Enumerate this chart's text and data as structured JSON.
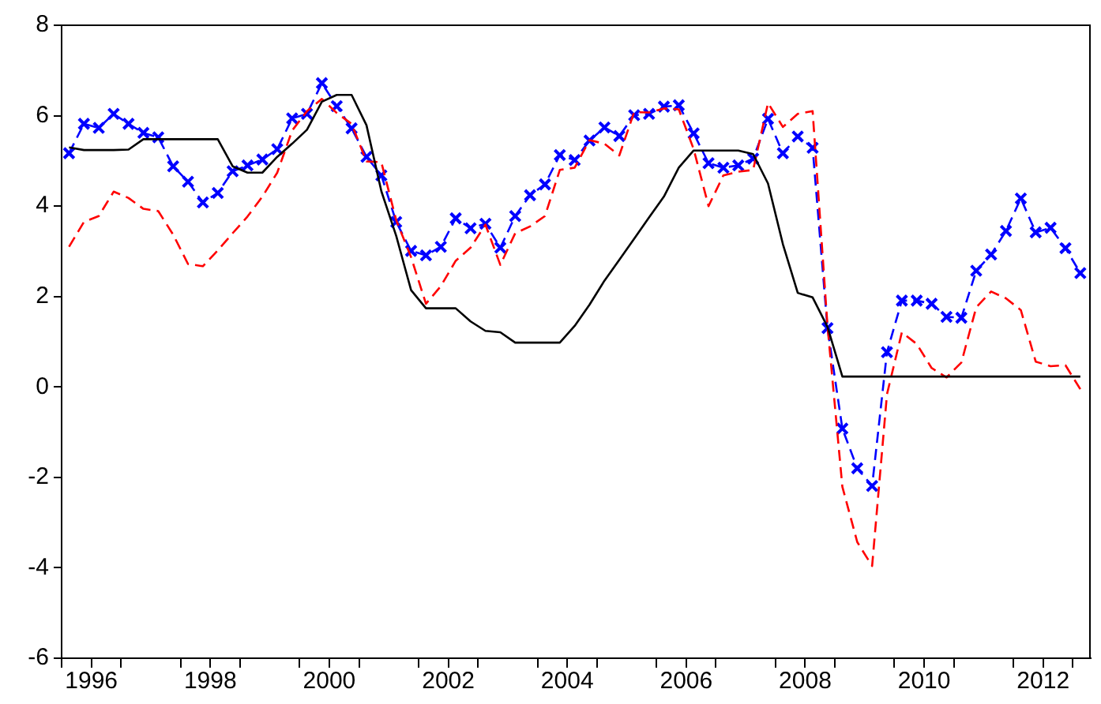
{
  "chart_data": {
    "type": "line",
    "x": [
      1996.125,
      1996.375,
      1996.625,
      1996.875,
      1997.125,
      1997.375,
      1997.625,
      1997.875,
      1998.125,
      1998.375,
      1998.625,
      1998.875,
      1999.125,
      1999.375,
      1999.625,
      1999.875,
      2000.125,
      2000.375,
      2000.625,
      2000.875,
      2001.125,
      2001.375,
      2001.625,
      2001.875,
      2002.125,
      2002.375,
      2002.625,
      2002.875,
      2003.125,
      2003.375,
      2003.625,
      2003.875,
      2004.125,
      2004.375,
      2004.625,
      2004.875,
      2005.125,
      2005.375,
      2005.625,
      2005.875,
      2006.125,
      2006.375,
      2006.625,
      2006.875,
      2007.125,
      2007.375,
      2007.625,
      2007.875,
      2008.125,
      2008.375,
      2008.625,
      2008.875,
      2009.125,
      2009.375,
      2009.625,
      2009.875,
      2010.125,
      2010.375,
      2010.625,
      2010.875,
      2011.125,
      2011.375,
      2011.625,
      2011.875,
      2012.125,
      2012.375,
      2012.625,
      2012.875,
      2013.125
    ],
    "series": [
      {
        "color": "#000000",
        "line_style": "solid",
        "marker": "none",
        "values": [
          5.3,
          5.24,
          5.24,
          5.24,
          5.25,
          5.48,
          5.48,
          5.48,
          5.48,
          5.48,
          5.48,
          4.88,
          4.74,
          4.74,
          5.09,
          5.38,
          5.69,
          6.31,
          6.46,
          6.46,
          5.79,
          4.33,
          3.34,
          2.14,
          1.74,
          1.74,
          1.74,
          1.45,
          1.24,
          1.21,
          0.98,
          0.98,
          0.98,
          0.98,
          1.35,
          1.82,
          2.35,
          2.81,
          3.28,
          3.75,
          4.21,
          4.85,
          5.23,
          5.23,
          5.23,
          5.23,
          5.15,
          4.5,
          3.16,
          2.08,
          1.98,
          1.33,
          0.23,
          0.23,
          0.23,
          0.23,
          0.23,
          0.23,
          0.23,
          0.23,
          0.23,
          0.23,
          0.23,
          0.23,
          0.23,
          0.23,
          0.23,
          0.23,
          0.23
        ]
      },
      {
        "color": "#ff0000",
        "line_style": "dashed",
        "marker": "none",
        "values": [
          3.1,
          3.65,
          3.78,
          4.32,
          4.18,
          3.94,
          3.89,
          3.37,
          2.72,
          2.67,
          3.02,
          3.4,
          3.77,
          4.21,
          4.74,
          5.67,
          6.1,
          6.37,
          6.06,
          5.82,
          4.99,
          4.97,
          3.69,
          2.87,
          1.84,
          2.23,
          2.79,
          3.08,
          3.59,
          2.7,
          3.4,
          3.55,
          3.78,
          4.8,
          4.85,
          5.46,
          5.38,
          5.12,
          6.08,
          6.07,
          6.16,
          6.14,
          5.26,
          4.0,
          4.68,
          4.76,
          4.8,
          6.28,
          5.75,
          6.04,
          6.1,
          1.35,
          -2.21,
          -3.43,
          -3.96,
          -0.16,
          1.21,
          0.95,
          0.42,
          0.21,
          0.54,
          1.76,
          2.11,
          1.96,
          1.7,
          0.56,
          0.46,
          0.48,
          -0.05
        ]
      },
      {
        "color": "#0000ff",
        "line_style": "dashed",
        "marker": "cross",
        "values": [
          5.17,
          5.82,
          5.73,
          6.04,
          5.82,
          5.62,
          5.52,
          4.88,
          4.54,
          4.08,
          4.29,
          4.77,
          4.9,
          5.03,
          5.26,
          5.94,
          6.04,
          6.72,
          6.21,
          5.72,
          5.09,
          4.68,
          3.65,
          3.01,
          2.91,
          3.1,
          3.73,
          3.51,
          3.61,
          3.08,
          3.78,
          4.24,
          4.48,
          5.13,
          5.02,
          5.45,
          5.74,
          5.55,
          6.01,
          6.04,
          6.2,
          6.23,
          5.61,
          4.95,
          4.85,
          4.9,
          5.05,
          5.93,
          5.17,
          5.54,
          5.29,
          1.3,
          -0.92,
          -1.8,
          -2.19,
          0.77,
          1.91,
          1.91,
          1.84,
          1.55,
          1.53,
          2.57,
          2.93,
          3.45,
          4.17,
          3.42,
          3.52,
          3.07,
          2.52
        ]
      }
    ],
    "xlim": [
      1996,
      2013.3
    ],
    "xticks": [
      {
        "value": 1996,
        "label": null
      },
      {
        "value": 1996.5,
        "label": "1996"
      },
      {
        "value": 1997,
        "label": null
      },
      {
        "value": 1998,
        "label": null
      },
      {
        "value": 1998.5,
        "label": "1998"
      },
      {
        "value": 1999,
        "label": null
      },
      {
        "value": 2000,
        "label": null
      },
      {
        "value": 2000.5,
        "label": "2000"
      },
      {
        "value": 2001,
        "label": null
      },
      {
        "value": 2002,
        "label": null
      },
      {
        "value": 2002.5,
        "label": "2002"
      },
      {
        "value": 2003,
        "label": null
      },
      {
        "value": 2004,
        "label": null
      },
      {
        "value": 2004.5,
        "label": "2004"
      },
      {
        "value": 2005,
        "label": null
      },
      {
        "value": 2006,
        "label": null
      },
      {
        "value": 2006.5,
        "label": "2006"
      },
      {
        "value": 2007,
        "label": null
      },
      {
        "value": 2008,
        "label": null
      },
      {
        "value": 2008.5,
        "label": "2008"
      },
      {
        "value": 2009,
        "label": null
      },
      {
        "value": 2010,
        "label": null
      },
      {
        "value": 2010.5,
        "label": "2010"
      },
      {
        "value": 2011,
        "label": null
      },
      {
        "value": 2012,
        "label": null
      },
      {
        "value": 2012.5,
        "label": "2012"
      },
      {
        "value": 2013,
        "label": null
      }
    ],
    "ylim": [
      -6,
      8
    ],
    "yticks": [
      -6,
      -4,
      -2,
      0,
      2,
      4,
      6,
      8
    ],
    "grid": false,
    "legend": false
  }
}
